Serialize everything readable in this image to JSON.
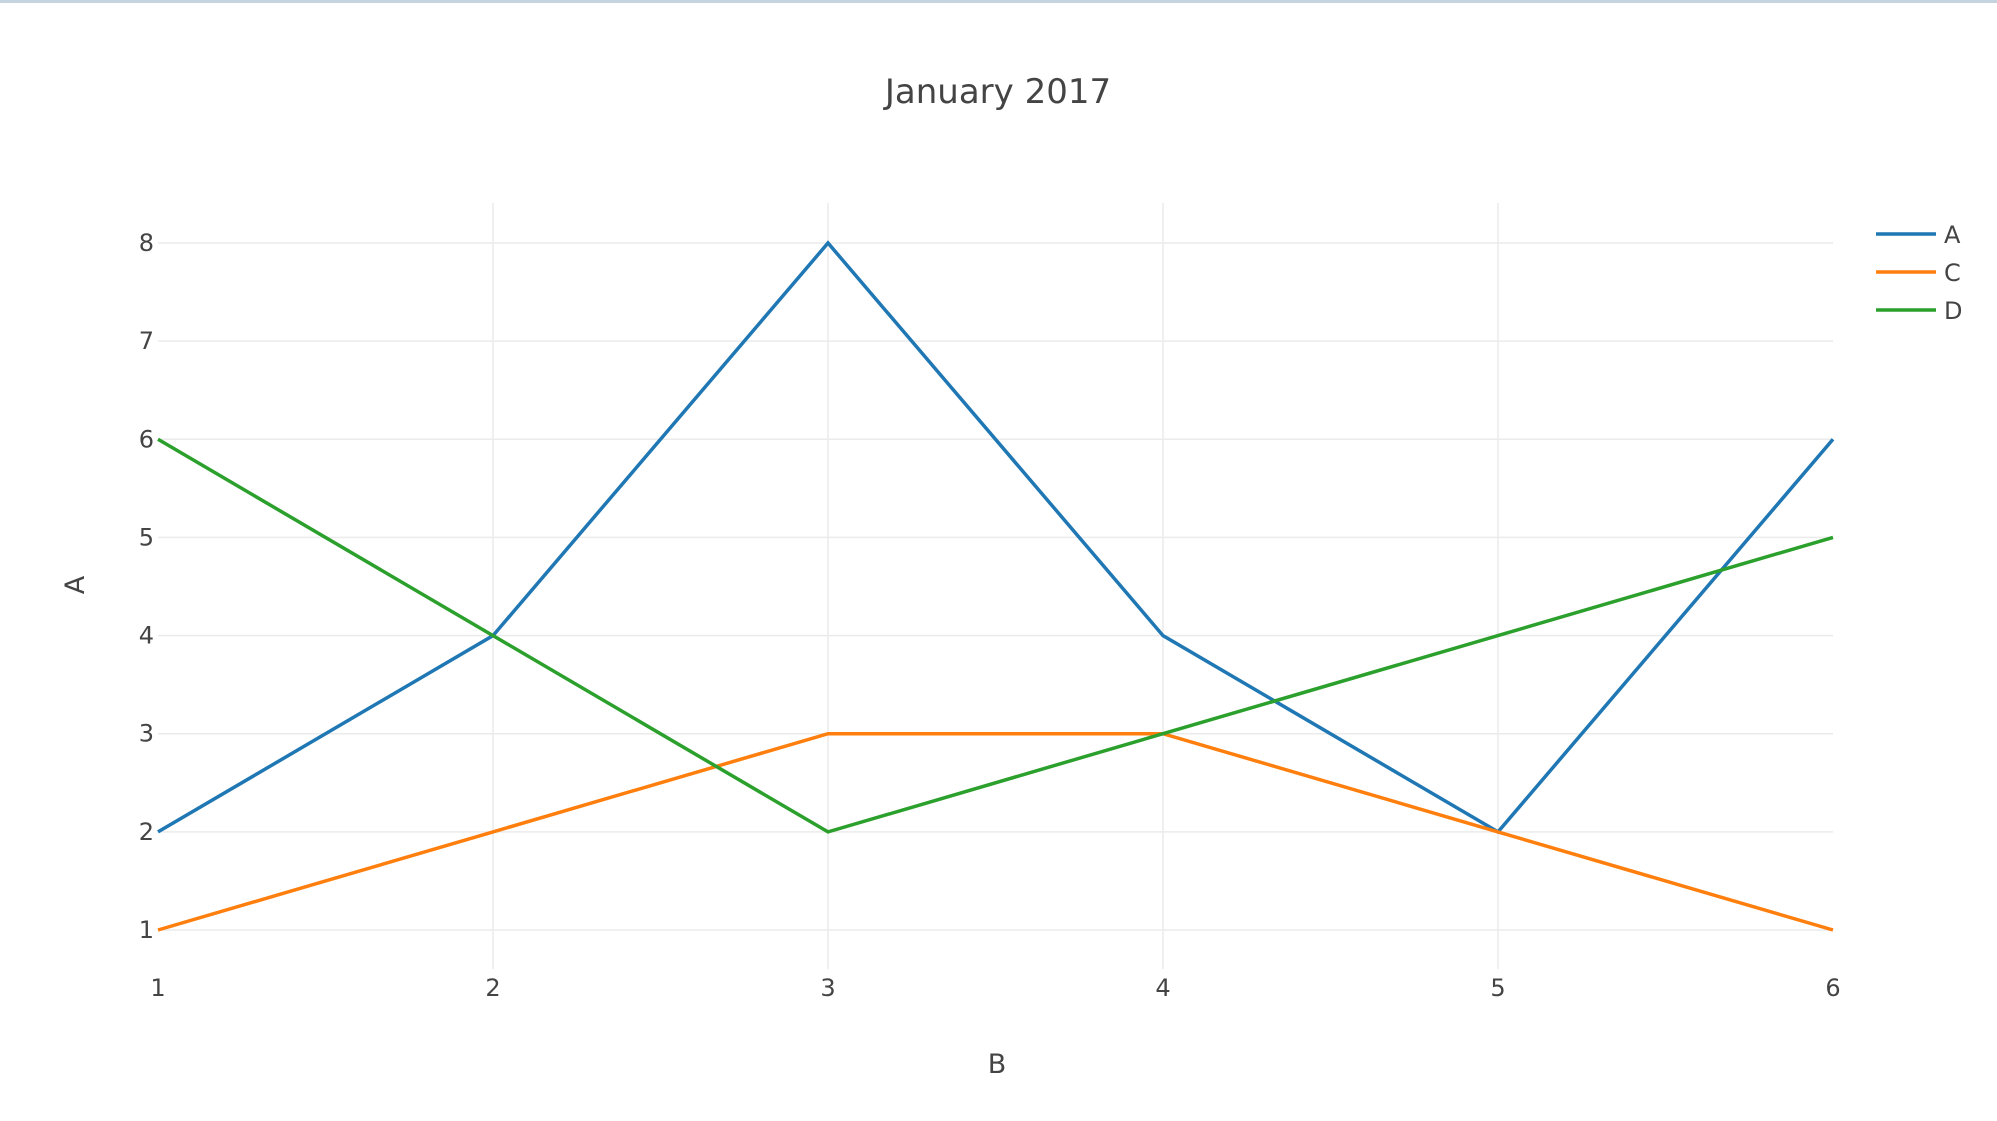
{
  "chart_data": {
    "type": "line",
    "title": "January 2017",
    "xlabel": "B",
    "ylabel": "A",
    "x": [
      1,
      2,
      3,
      4,
      5,
      6
    ],
    "xlim": [
      1,
      6
    ],
    "ylim": [
      0.6,
      8.4
    ],
    "xticks": [
      1,
      2,
      3,
      4,
      5,
      6
    ],
    "yticks": [
      1,
      2,
      3,
      4,
      5,
      6,
      7,
      8
    ],
    "grid": true,
    "legend_position": "top-right",
    "series": [
      {
        "name": "A",
        "color": "#1f77b4",
        "values": [
          2,
          4,
          8,
          4,
          2,
          6
        ]
      },
      {
        "name": "C",
        "color": "#ff7f0e",
        "values": [
          1,
          2,
          3,
          3,
          2,
          1
        ]
      },
      {
        "name": "D",
        "color": "#2ca02c",
        "values": [
          6,
          4,
          2,
          3,
          4,
          5
        ]
      }
    ]
  }
}
